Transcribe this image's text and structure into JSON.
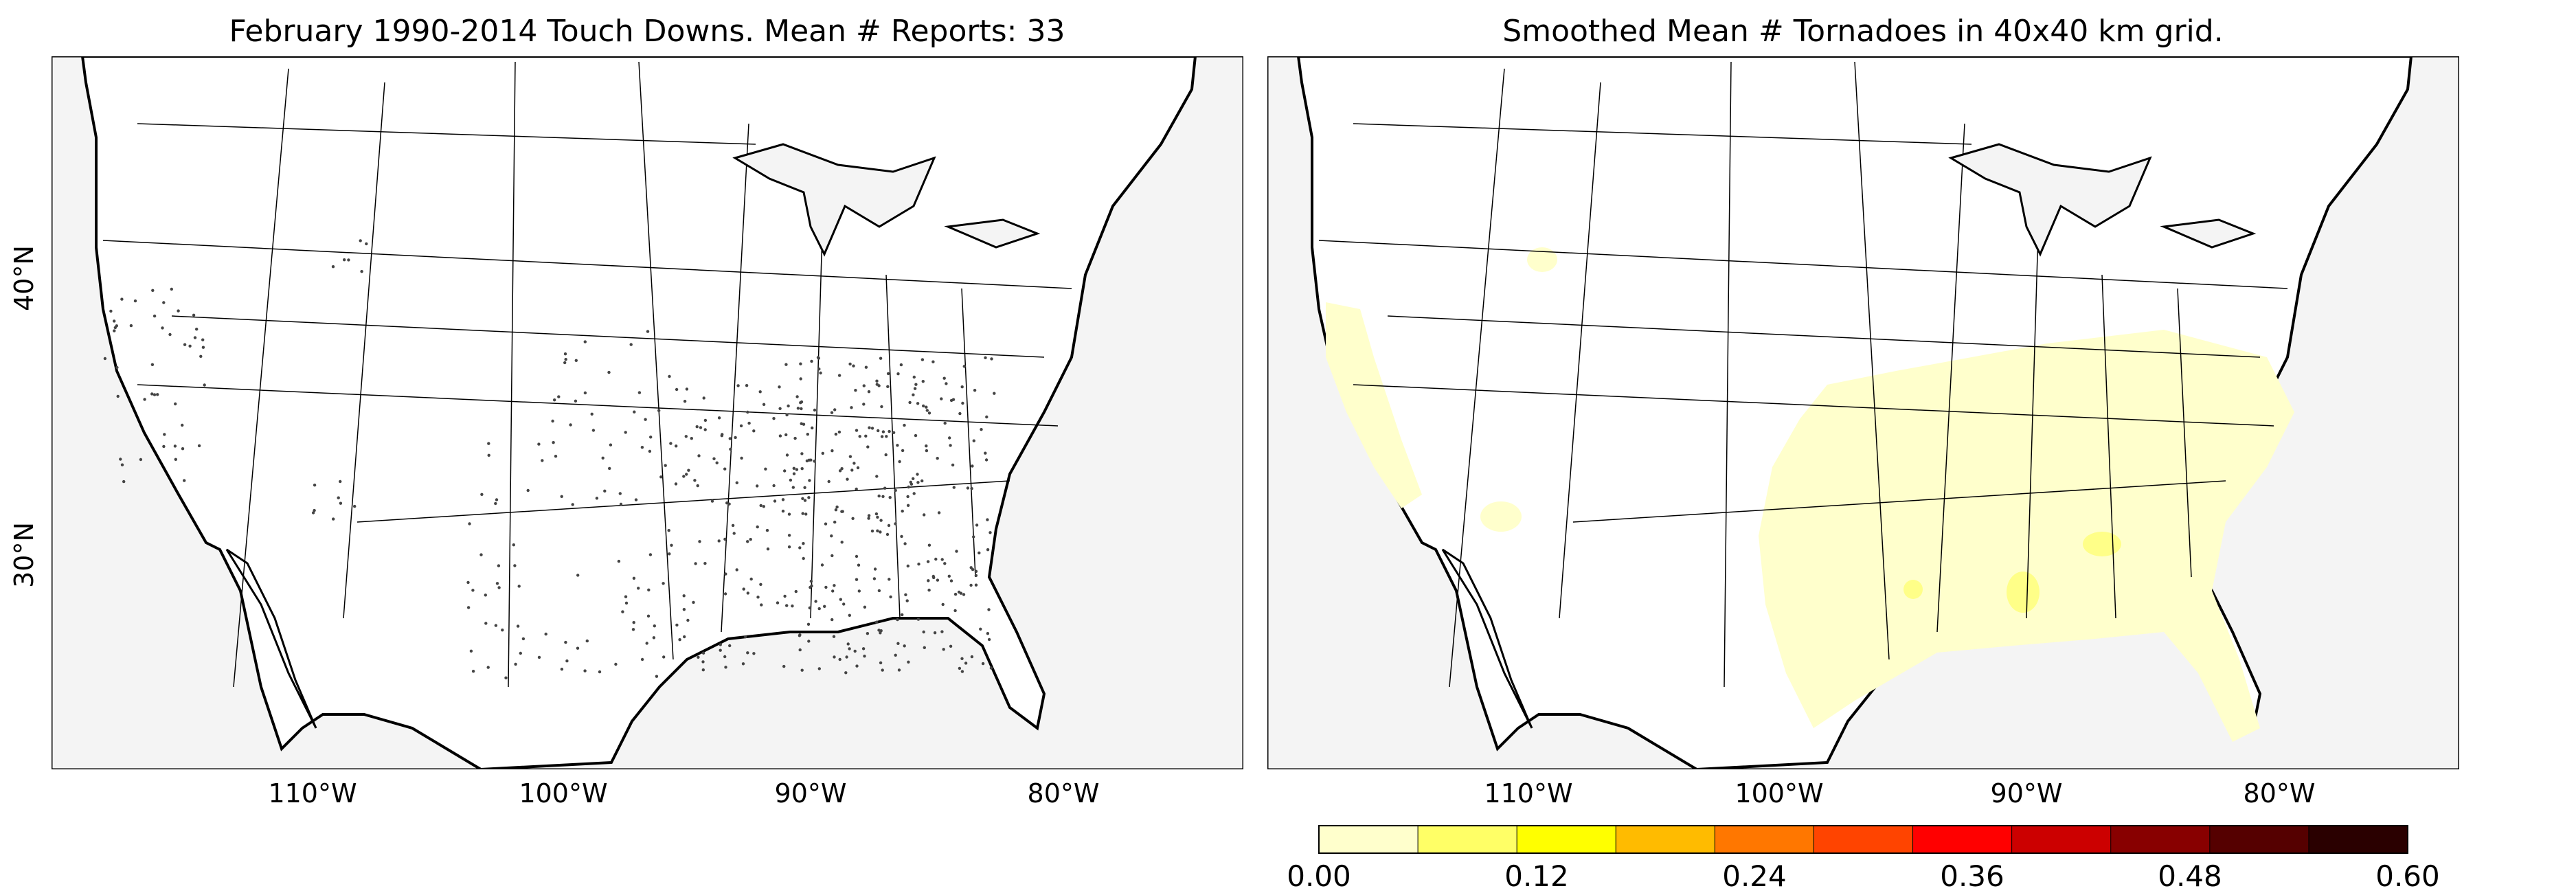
{
  "left_panel": {
    "title": "February 1990-2014 Touch Downs. Mean # Reports: 33",
    "lon_labels": [
      "110°W",
      "100°W",
      "90°W",
      "80°W"
    ],
    "lat_labels": [
      "40°N",
      "30°N"
    ]
  },
  "right_panel": {
    "title": "Smoothed Mean # Tornadoes in 40x40 km grid.",
    "lon_labels": [
      "110°W",
      "100°W",
      "90°W",
      "80°W"
    ]
  },
  "colorbar": {
    "tick_labels": [
      "0.00",
      "0.12",
      "0.24",
      "0.36",
      "0.48",
      "0.60"
    ],
    "colors": [
      "#ffffcc",
      "#ffff66",
      "#ffff00",
      "#ffbb00",
      "#ff7700",
      "#ff4400",
      "#ff0000",
      "#cc0000",
      "#880000",
      "#550000",
      "#2a0000"
    ]
  },
  "colors": {
    "land": "#ffffff",
    "water": "#f4f4f4",
    "density_light": "#ffffcc",
    "density_mid": "#ffff88"
  }
}
